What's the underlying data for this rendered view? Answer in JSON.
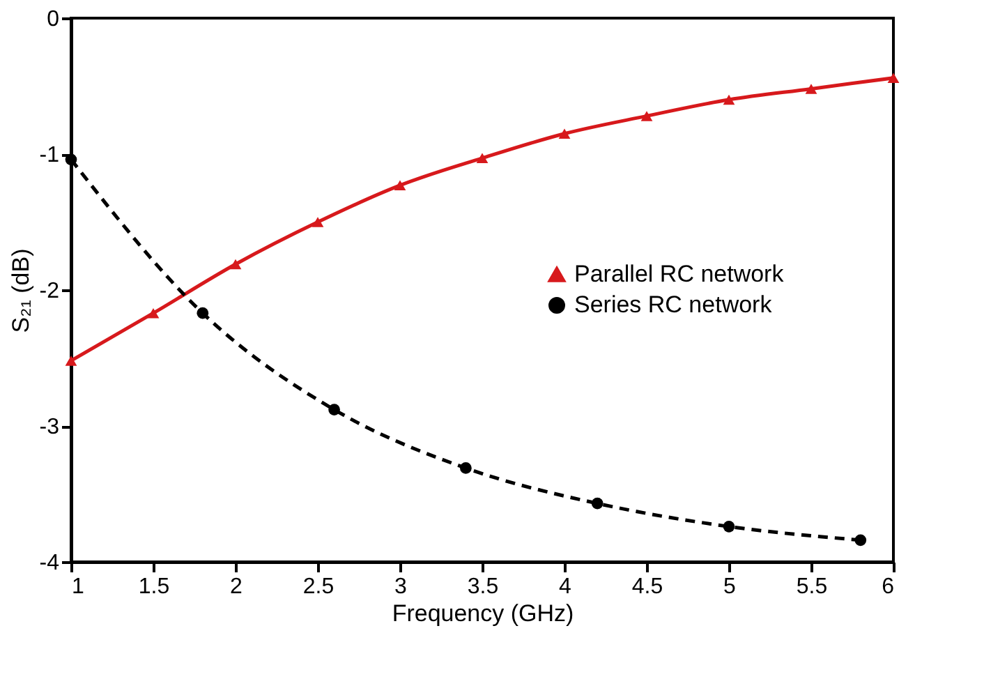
{
  "chart_data": {
    "type": "line",
    "xlabel": "Frequency (GHz)",
    "ylabel": "S₂₁ (dB)",
    "xlim": [
      1,
      6
    ],
    "ylim": [
      -4,
      0
    ],
    "xticks": [
      1,
      1.5,
      2,
      2.5,
      3,
      3.5,
      4,
      4.5,
      5,
      5.5,
      6
    ],
    "yticks": [
      -4,
      -3,
      -2,
      -1,
      0
    ],
    "grid": false,
    "legend": "right",
    "series": [
      {
        "name": "Parallel RC network",
        "color": "#d7191c",
        "marker": "triangle",
        "line_style": "solid",
        "x": [
          1,
          1.5,
          2,
          2.5,
          3,
          3.5,
          4,
          4.5,
          5,
          5.5,
          6
        ],
        "values": [
          -2.52,
          -2.17,
          -1.81,
          -1.5,
          -1.23,
          -1.03,
          -0.85,
          -0.72,
          -0.6,
          -0.52,
          -0.44
        ]
      },
      {
        "name": "Series RC network",
        "color": "#000000",
        "marker": "circle",
        "line_style": "dashed",
        "x": [
          1,
          1.8,
          2.6,
          3.4,
          4.2,
          5,
          5.8
        ],
        "values": [
          -1.04,
          -2.17,
          -2.88,
          -3.31,
          -3.57,
          -3.74,
          -3.84
        ]
      }
    ]
  }
}
